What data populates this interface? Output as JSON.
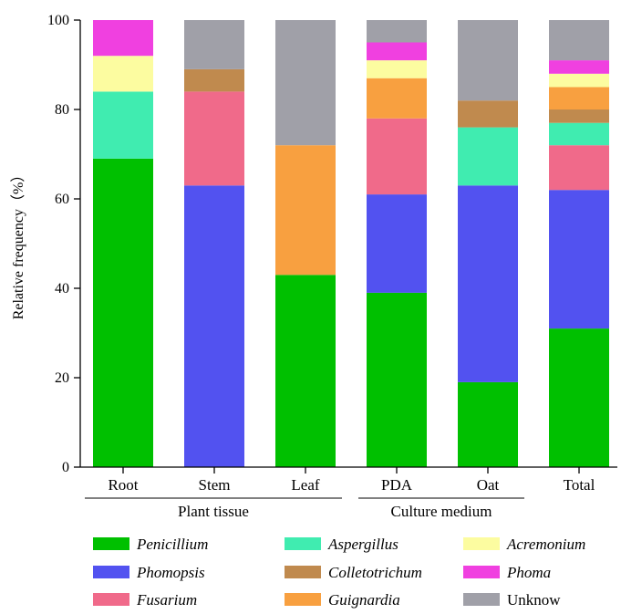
{
  "chart_data": {
    "type": "bar",
    "stacked": true,
    "title": "",
    "xlabel": "",
    "ylabel": "Relative frequency（%）",
    "ylim": [
      0,
      100
    ],
    "yticks": [
      0,
      20,
      40,
      60,
      80,
      100
    ],
    "categories": [
      "Root",
      "Stem",
      "Leaf",
      "PDA",
      "Oat",
      "Total"
    ],
    "groups": [
      {
        "label": "Plant tissue",
        "categories": [
          "Root",
          "Stem",
          "Leaf"
        ]
      },
      {
        "label": "Culture medium",
        "categories": [
          "PDA",
          "Oat"
        ]
      }
    ],
    "grid": false,
    "legend_position": "bottom",
    "series": [
      {
        "name": "Penicillium",
        "italic": true,
        "color": "#00c000",
        "values": [
          69,
          0,
          43,
          39,
          19,
          31
        ]
      },
      {
        "name": "Phomopsis",
        "italic": true,
        "color": "#5252f0",
        "values": [
          0,
          63,
          0,
          22,
          44,
          31
        ]
      },
      {
        "name": "Fusarium",
        "italic": true,
        "color": "#f06a8a",
        "values": [
          0,
          21,
          0,
          17,
          0,
          10
        ]
      },
      {
        "name": "Aspergillus",
        "italic": true,
        "color": "#40ecb0",
        "values": [
          15,
          0,
          0,
          0,
          13,
          5
        ]
      },
      {
        "name": "Colletotrichum",
        "italic": true,
        "color": "#c08a4e",
        "values": [
          0,
          5,
          0,
          0,
          6,
          3
        ]
      },
      {
        "name": "Guignardia",
        "italic": true,
        "color": "#f8a040",
        "values": [
          0,
          0,
          29,
          9,
          0,
          5
        ]
      },
      {
        "name": "Acremonium",
        "italic": true,
        "color": "#fcfca0",
        "values": [
          8,
          0,
          0,
          4,
          0,
          3
        ]
      },
      {
        "name": "Phoma",
        "italic": true,
        "color": "#f040e0",
        "values": [
          8,
          0,
          0,
          4,
          0,
          3
        ]
      },
      {
        "name": "Unknow",
        "italic": false,
        "color": "#a0a0a8",
        "values": [
          0,
          11,
          28,
          5,
          18,
          9
        ]
      }
    ]
  }
}
